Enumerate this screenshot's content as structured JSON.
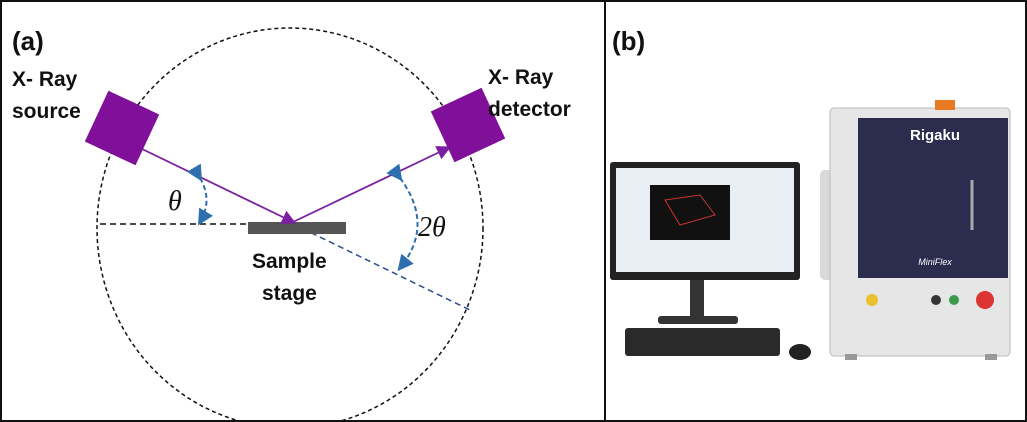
{
  "panel_a": {
    "label": "(a)",
    "source_label": [
      "X- Ray",
      "source"
    ],
    "detector_label": [
      "X- Ray",
      "detector"
    ],
    "theta": "θ",
    "two_theta": "2θ",
    "sample_label": [
      "Sample",
      "stage"
    ]
  },
  "panel_b": {
    "label": "(b)",
    "brand": "Rigaku",
    "model": "MiniFlex"
  }
}
